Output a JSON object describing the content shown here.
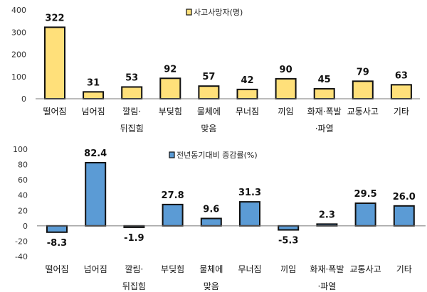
{
  "chart_data": [
    {
      "type": "bar",
      "categories": [
        "떨어짐",
        "넘어짐",
        "깔림·\n뒤집힘",
        "부딪힘",
        "물체에\n맞음",
        "무너짐",
        "끼임",
        "화재·폭발\n·파열",
        "교통사고",
        "기타"
      ],
      "series": [
        {
          "name": "사고사망자(명)",
          "values": [
            322,
            31,
            53,
            92,
            57,
            42,
            90,
            45,
            79,
            63
          ],
          "color": "#FFE07A"
        }
      ],
      "value_labels": [
        "322",
        "31",
        "53",
        "92",
        "57",
        "42",
        "90",
        "45",
        "79",
        "63"
      ],
      "yticks": [
        "0",
        "100",
        "200",
        "300",
        "400"
      ],
      "ylim": [
        0,
        400
      ],
      "legend": "top-center",
      "grid": false
    },
    {
      "type": "bar",
      "categories": [
        "떨어짐",
        "넘어짐",
        "깔림·\n뒤집힘",
        "부딪힘",
        "물체에\n맞음",
        "무너짐",
        "끼임",
        "화재·폭발\n·파열",
        "교통사고",
        "기타"
      ],
      "series": [
        {
          "name": "전년동기대비 증감률(%)",
          "values": [
            -8.3,
            82.4,
            -1.9,
            27.8,
            9.6,
            31.3,
            -5.3,
            2.3,
            29.5,
            26.0
          ],
          "color": "#5B9BD5"
        }
      ],
      "value_labels": [
        "-8.3",
        "82.4",
        "-1.9",
        "27.8",
        "9.6",
        "31.3",
        "-5.3",
        "2.3",
        "29.5",
        "26.0"
      ],
      "yticks": [
        "-40",
        "-20",
        "0",
        "20",
        "40",
        "60",
        "80",
        "100"
      ],
      "ylim": [
        -40,
        100
      ],
      "legend": "top-center",
      "grid": false
    }
  ]
}
